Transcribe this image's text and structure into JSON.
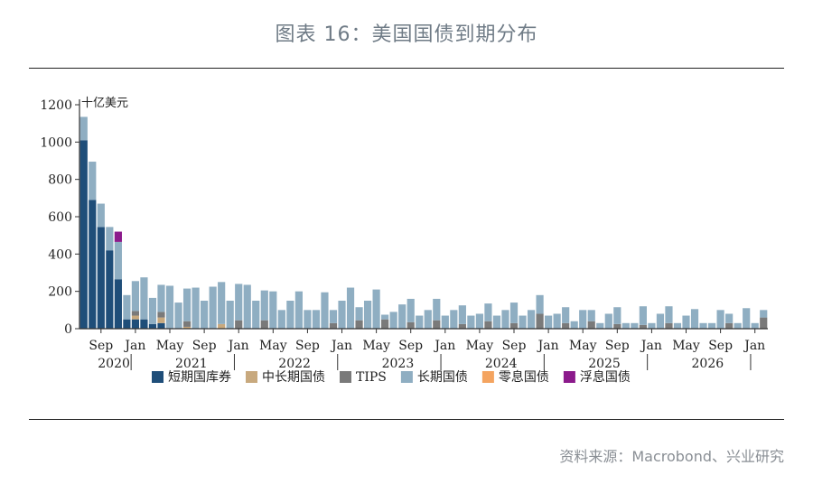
{
  "page": {
    "title": "图表 16：美国国债到期分布",
    "source": "资料来源：Macrobond、兴业研究"
  },
  "chart_data": {
    "type": "bar",
    "stacked": true,
    "unit": "十亿美元",
    "ylim": [
      0,
      1200
    ],
    "yticks": [
      0,
      200,
      400,
      600,
      800,
      1000,
      1200
    ],
    "start_month": "2020-07",
    "month_ticks": [
      {
        "index": 2,
        "label": "Sep"
      },
      {
        "index": 6,
        "label": "Jan"
      },
      {
        "index": 10,
        "label": "May"
      },
      {
        "index": 14,
        "label": "Sep"
      },
      {
        "index": 18,
        "label": "Jan"
      },
      {
        "index": 22,
        "label": "May"
      },
      {
        "index": 26,
        "label": "Sep"
      },
      {
        "index": 30,
        "label": "Jan"
      },
      {
        "index": 34,
        "label": "May"
      },
      {
        "index": 38,
        "label": "Sep"
      },
      {
        "index": 42,
        "label": "Jan"
      },
      {
        "index": 46,
        "label": "May"
      },
      {
        "index": 50,
        "label": "Sep"
      },
      {
        "index": 54,
        "label": "Jan"
      },
      {
        "index": 58,
        "label": "May"
      },
      {
        "index": 62,
        "label": "Sep"
      },
      {
        "index": 66,
        "label": "Jan"
      },
      {
        "index": 70,
        "label": "May"
      },
      {
        "index": 74,
        "label": "Sep"
      },
      {
        "index": 78,
        "label": "Jan"
      }
    ],
    "year_labels": [
      {
        "index": 3.5,
        "label": "2020"
      },
      {
        "index": 12.5,
        "label": "2021"
      },
      {
        "index": 24.5,
        "label": "2022"
      },
      {
        "index": 36.5,
        "label": "2023"
      },
      {
        "index": 48.5,
        "label": "2024"
      },
      {
        "index": 60.5,
        "label": "2025"
      },
      {
        "index": 72.5,
        "label": "2026"
      }
    ],
    "series": [
      {
        "name": "短期国库券",
        "color": "#1f4e79",
        "values": [
          1010,
          690,
          545,
          420,
          265,
          50,
          50,
          50,
          25,
          30,
          0,
          0,
          0,
          0,
          0,
          0,
          0,
          0,
          0,
          0,
          0,
          0,
          0,
          0,
          0,
          0,
          0,
          0,
          0,
          0,
          0,
          0,
          0,
          0,
          0,
          0,
          0,
          0,
          0,
          0,
          0,
          0,
          0,
          0,
          0,
          0,
          0,
          0,
          0,
          0,
          0,
          0,
          0,
          0,
          0,
          0,
          0,
          0,
          0,
          0,
          0,
          0,
          0,
          0,
          0,
          0,
          0,
          0,
          0,
          0,
          0,
          0,
          0,
          0,
          0,
          0,
          0,
          0,
          0,
          0
        ]
      },
      {
        "name": "中长期国债",
        "color": "#c8a97e",
        "values": [
          0,
          0,
          0,
          0,
          0,
          0,
          20,
          0,
          0,
          30,
          0,
          0,
          10,
          0,
          0,
          0,
          25,
          0,
          0,
          0,
          0,
          0,
          0,
          0,
          0,
          0,
          0,
          0,
          0,
          0,
          0,
          0,
          0,
          0,
          0,
          0,
          0,
          0,
          0,
          0,
          0,
          0,
          0,
          0,
          0,
          0,
          0,
          0,
          0,
          0,
          0,
          0,
          0,
          0,
          0,
          0,
          0,
          0,
          0,
          0,
          0,
          0,
          0,
          0,
          0,
          0,
          0,
          0,
          0,
          0,
          0,
          0,
          0,
          0,
          0,
          0,
          0,
          0,
          0,
          0
        ]
      },
      {
        "name": "TIPS",
        "color": "#7a7a7a",
        "values": [
          0,
          0,
          0,
          0,
          0,
          0,
          25,
          0,
          0,
          30,
          0,
          0,
          30,
          0,
          0,
          0,
          0,
          0,
          45,
          0,
          0,
          45,
          0,
          0,
          0,
          0,
          0,
          0,
          0,
          30,
          0,
          0,
          45,
          0,
          0,
          50,
          0,
          0,
          35,
          0,
          0,
          45,
          0,
          0,
          25,
          0,
          0,
          40,
          0,
          0,
          30,
          0,
          0,
          80,
          0,
          0,
          30,
          0,
          0,
          40,
          0,
          0,
          25,
          0,
          0,
          20,
          0,
          0,
          30,
          0,
          0,
          0,
          0,
          0,
          0,
          30,
          0,
          0,
          0,
          60
        ]
      },
      {
        "name": "长期国债",
        "color": "#8faec2",
        "values": [
          125,
          205,
          125,
          125,
          200,
          130,
          160,
          225,
          140,
          145,
          230,
          140,
          175,
          220,
          150,
          225,
          225,
          150,
          195,
          235,
          150,
          160,
          200,
          100,
          150,
          200,
          100,
          100,
          195,
          70,
          150,
          220,
          70,
          150,
          210,
          25,
          90,
          130,
          125,
          70,
          100,
          115,
          70,
          100,
          100,
          70,
          80,
          95,
          70,
          100,
          110,
          70,
          100,
          100,
          70,
          80,
          85,
          40,
          100,
          60,
          30,
          80,
          90,
          30,
          30,
          100,
          30,
          80,
          90,
          30,
          70,
          105,
          30,
          30,
          100,
          50,
          30,
          110,
          30,
          40
        ]
      },
      {
        "name": "零息国债",
        "color": "#f4a460",
        "values": [
          0,
          0,
          0,
          0,
          0,
          0,
          0,
          0,
          0,
          0,
          0,
          0,
          0,
          0,
          0,
          0,
          0,
          0,
          0,
          0,
          0,
          0,
          0,
          0,
          0,
          0,
          0,
          0,
          0,
          0,
          0,
          0,
          0,
          0,
          0,
          0,
          0,
          0,
          0,
          0,
          0,
          0,
          0,
          0,
          0,
          0,
          0,
          0,
          0,
          0,
          0,
          0,
          0,
          0,
          0,
          0,
          0,
          0,
          0,
          0,
          0,
          0,
          0,
          0,
          0,
          0,
          0,
          0,
          0,
          0,
          0,
          0,
          0,
          0,
          0,
          0,
          0,
          0,
          0,
          0
        ]
      },
      {
        "name": "浮息国债",
        "color": "#8b1a8b",
        "values": [
          0,
          0,
          0,
          0,
          55,
          0,
          0,
          0,
          0,
          0,
          0,
          0,
          0,
          0,
          0,
          0,
          0,
          0,
          0,
          0,
          0,
          0,
          0,
          0,
          0,
          0,
          0,
          0,
          0,
          0,
          0,
          0,
          0,
          0,
          0,
          0,
          0,
          0,
          0,
          0,
          0,
          0,
          0,
          0,
          0,
          0,
          0,
          0,
          0,
          0,
          0,
          0,
          0,
          0,
          0,
          0,
          0,
          0,
          0,
          0,
          0,
          0,
          0,
          0,
          0,
          0,
          0,
          0,
          0,
          0,
          0,
          0,
          0,
          0,
          0,
          0,
          0,
          0,
          0,
          0
        ]
      }
    ]
  }
}
